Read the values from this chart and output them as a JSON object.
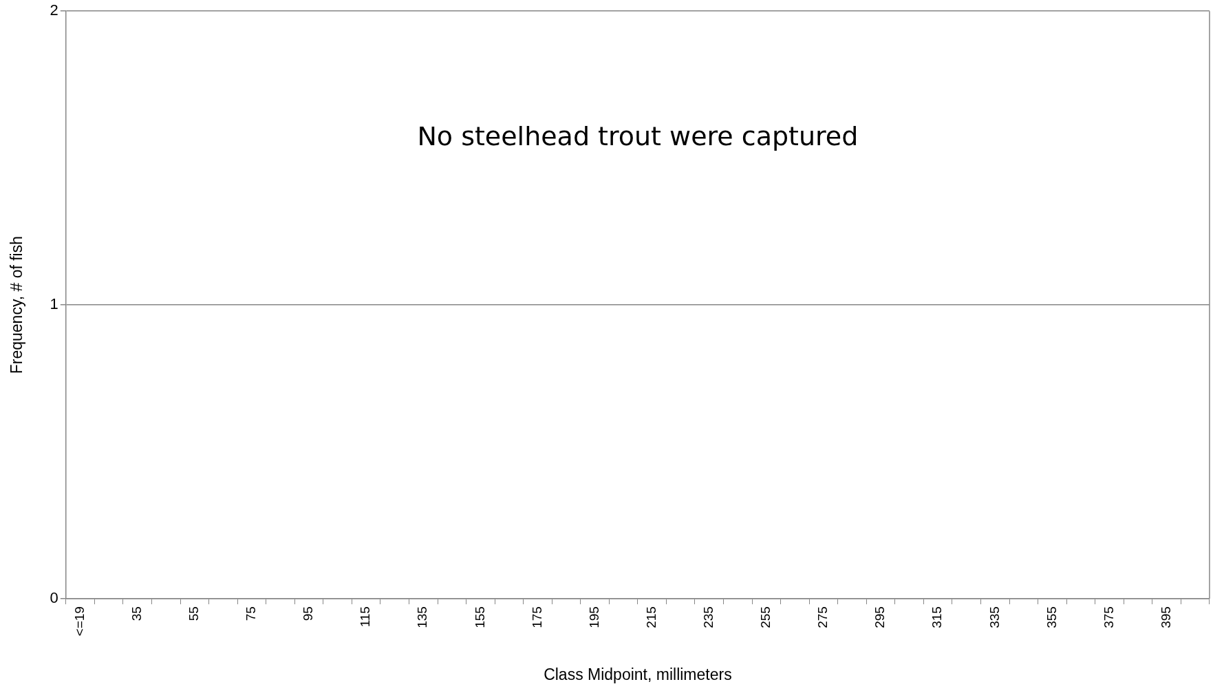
{
  "chart_data": {
    "type": "bar",
    "xlabel": "Class Midpoint, millimeters",
    "ylabel": "Frequency, # of fish",
    "categories": [
      "<=19",
      null,
      "35",
      null,
      "55",
      null,
      "75",
      null,
      "95",
      null,
      "115",
      null,
      "135",
      null,
      "155",
      null,
      "175",
      null,
      "195",
      null,
      "215",
      null,
      "235",
      null,
      "255",
      null,
      "275",
      null,
      "295",
      null,
      "315",
      null,
      "335",
      null,
      "355",
      null,
      "375",
      null,
      "395",
      null
    ],
    "values": [
      0,
      0,
      0,
      0,
      0,
      0,
      0,
      0,
      0,
      0,
      0,
      0,
      0,
      0,
      0,
      0,
      0,
      0,
      0,
      0,
      0,
      0,
      0,
      0,
      0,
      0,
      0,
      0,
      0,
      0,
      0,
      0,
      0,
      0,
      0,
      0,
      0,
      0,
      0,
      0
    ],
    "ylim": [
      0,
      2
    ],
    "yticks": [
      0,
      1,
      2
    ],
    "grid": "y",
    "legend": false,
    "annotations": [
      "No steelhead trout were captured"
    ]
  }
}
